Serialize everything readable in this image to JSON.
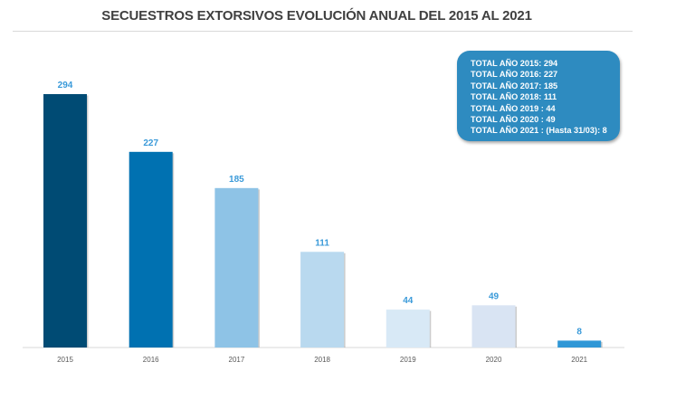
{
  "chart_data": {
    "type": "bar",
    "title": "SECUESTROS EXTORSIVOS EVOLUCIÓN ANUAL DEL 2015 AL 2021",
    "categories": [
      "2015",
      "2016",
      "2017",
      "2018",
      "2019",
      "2020",
      "2021"
    ],
    "values": [
      294,
      227,
      185,
      111,
      44,
      49,
      8
    ],
    "bar_colors": [
      "#004b74",
      "#0071b1",
      "#8ec3e6",
      "#b9d9ef",
      "#d8e9f6",
      "#d9e4f3",
      "#2f97d6"
    ],
    "label_color": "#3a9ad9",
    "xlabel": "",
    "ylabel": "",
    "ylim": [
      0,
      294
    ],
    "grid": false,
    "legend": "none",
    "info_box": {
      "color": "#2e8bc0",
      "placement": "top-right",
      "lines": [
        "TOTAL AÑO 2015: 294",
        "TOTAL AÑO 2016: 227",
        "TOTAL AÑO 2017: 185",
        "TOTAL AÑO 2018: 111",
        "TOTAL AÑO 2019 : 44",
        "TOTAL AÑO 2020 : 49",
        "TOTAL AÑO 2021 : (Hasta 31/03): 8"
      ]
    }
  }
}
